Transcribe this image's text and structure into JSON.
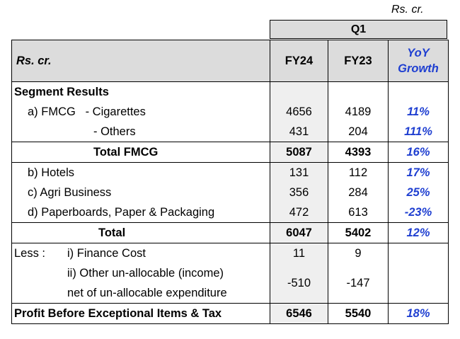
{
  "unit_top": "Rs. cr.",
  "header": {
    "period": "Q1",
    "row_label": "Rs. cr.",
    "fy24": "FY24",
    "fy23": "FY23",
    "yoy": "YoY Growth"
  },
  "rows": [
    {
      "label": "Segment Results",
      "fy24": "",
      "fy23": "",
      "yoy": ""
    },
    {
      "label": "a) FMCG   - Cigarettes",
      "fy24": "4656",
      "fy23": "4189",
      "yoy": "11%"
    },
    {
      "label": "- Others",
      "fy24": "431",
      "fy23": "204",
      "yoy": "111%"
    },
    {
      "label": "Total FMCG",
      "fy24": "5087",
      "fy23": "4393",
      "yoy": "16%"
    },
    {
      "label": "b) Hotels",
      "fy24": "131",
      "fy23": "112",
      "yoy": "17%"
    },
    {
      "label": "c) Agri Business",
      "fy24": "356",
      "fy23": "284",
      "yoy": "25%"
    },
    {
      "label": "d) Paperboards, Paper & Packaging",
      "fy24": "472",
      "fy23": "613",
      "yoy": "-23%"
    },
    {
      "label": "Total",
      "fy24": "6047",
      "fy23": "5402",
      "yoy": "12%"
    },
    {
      "label_prefix": "Less :",
      "label": "i) Finance Cost",
      "fy24": "11",
      "fy23": "9",
      "yoy": ""
    },
    {
      "label": "ii) Other un-allocable (income) net of un-allocable expenditure",
      "fy24": "-510",
      "fy23": "-147",
      "yoy": ""
    }
  ],
  "footer": {
    "label": "Profit Before Exceptional Items & Tax",
    "fy24": "6546",
    "fy23": "5540",
    "yoy": "18%"
  }
}
